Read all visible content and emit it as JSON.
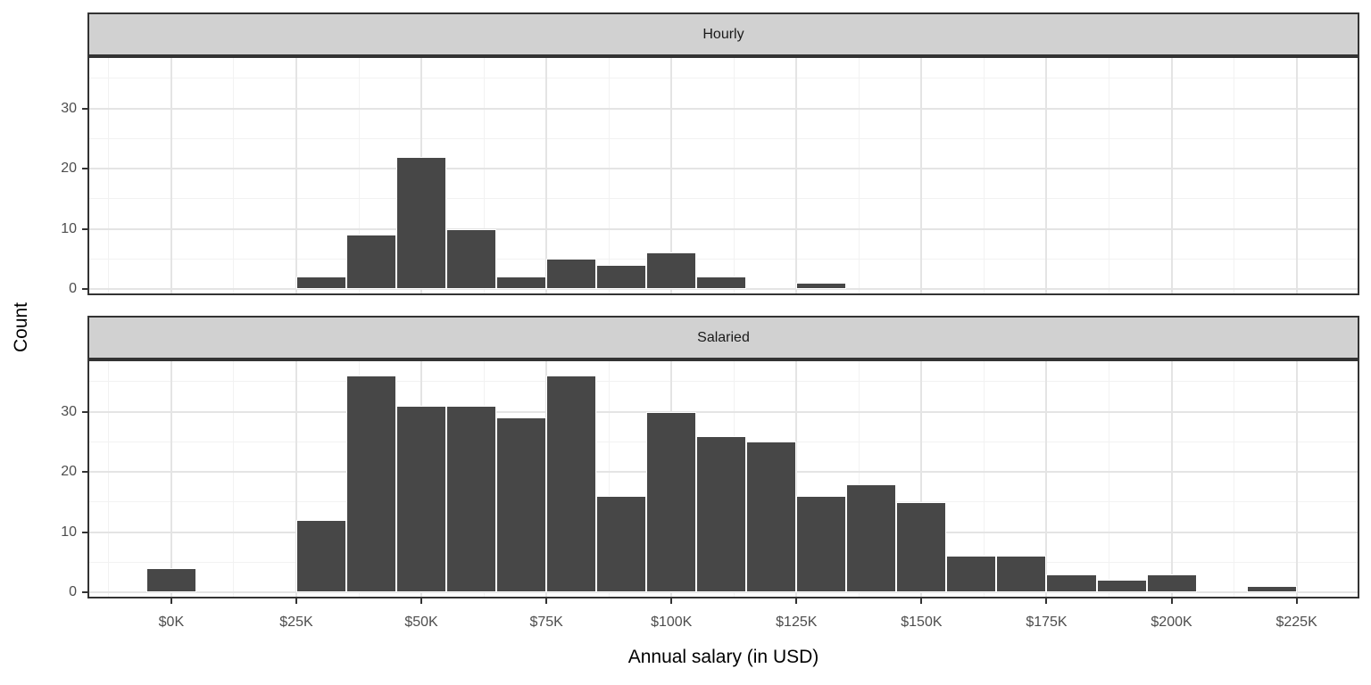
{
  "chart_data": {
    "type": "bar",
    "subtype": "faceted_histogram",
    "title": "",
    "xlabel": "Annual salary (in USD)",
    "ylabel": "Count",
    "x_unit": "USD thousands (K)",
    "bin_width_k": 10,
    "xlim_k": [
      -16.4,
      237.2
    ],
    "ylim": [
      -0.75,
      38.4
    ],
    "x_tick_values_k": [
      0,
      25,
      50,
      75,
      100,
      125,
      150,
      175,
      200,
      225
    ],
    "x_tick_labels": [
      "$0K",
      "$25K",
      "$50K",
      "$75K",
      "$100K",
      "$125K",
      "$150K",
      "$175K",
      "$200K",
      "$225K"
    ],
    "x_minor_grid_values_k": [
      -12.5,
      12.5,
      37.5,
      62.5,
      87.5,
      112.5,
      137.5,
      162.5,
      187.5,
      212.5
    ],
    "y_tick_values": [
      0,
      10,
      20,
      30
    ],
    "y_minor_grid_values": [
      5,
      15,
      25,
      35
    ],
    "grid": "major+minor",
    "legend_position": "none",
    "facets": [
      {
        "label": "Hourly",
        "bins": [
          {
            "center_k": 30,
            "count": 2
          },
          {
            "center_k": 40,
            "count": 9
          },
          {
            "center_k": 50,
            "count": 22
          },
          {
            "center_k": 60,
            "count": 10
          },
          {
            "center_k": 70,
            "count": 2
          },
          {
            "center_k": 80,
            "count": 5
          },
          {
            "center_k": 90,
            "count": 4
          },
          {
            "center_k": 100,
            "count": 6
          },
          {
            "center_k": 110,
            "count": 2
          },
          {
            "center_k": 130,
            "count": 1
          }
        ]
      },
      {
        "label": "Salaried",
        "bins": [
          {
            "center_k": 0,
            "count": 4
          },
          {
            "center_k": 30,
            "count": 12
          },
          {
            "center_k": 40,
            "count": 36
          },
          {
            "center_k": 50,
            "count": 31
          },
          {
            "center_k": 60,
            "count": 31
          },
          {
            "center_k": 70,
            "count": 29
          },
          {
            "center_k": 80,
            "count": 36
          },
          {
            "center_k": 90,
            "count": 16
          },
          {
            "center_k": 100,
            "count": 30
          },
          {
            "center_k": 110,
            "count": 26
          },
          {
            "center_k": 120,
            "count": 25
          },
          {
            "center_k": 130,
            "count": 16
          },
          {
            "center_k": 140,
            "count": 18
          },
          {
            "center_k": 150,
            "count": 15
          },
          {
            "center_k": 160,
            "count": 6
          },
          {
            "center_k": 170,
            "count": 6
          },
          {
            "center_k": 180,
            "count": 3
          },
          {
            "center_k": 190,
            "count": 2
          },
          {
            "center_k": 200,
            "count": 3
          },
          {
            "center_k": 220,
            "count": 1
          }
        ]
      }
    ],
    "colors": {
      "bar_fill": "#474747",
      "bar_stroke": "#ffffff",
      "strip_background": "#d1d1d1",
      "strip_text": "#1a1a1a",
      "panel_background": "#ffffff",
      "panel_border": "#333333",
      "grid_major": "#e4e4e4",
      "grid_minor": "#f2f2f2",
      "axis_text": "#4d4d4d",
      "axis_title": "#000000",
      "tick_mark": "#333333"
    }
  }
}
